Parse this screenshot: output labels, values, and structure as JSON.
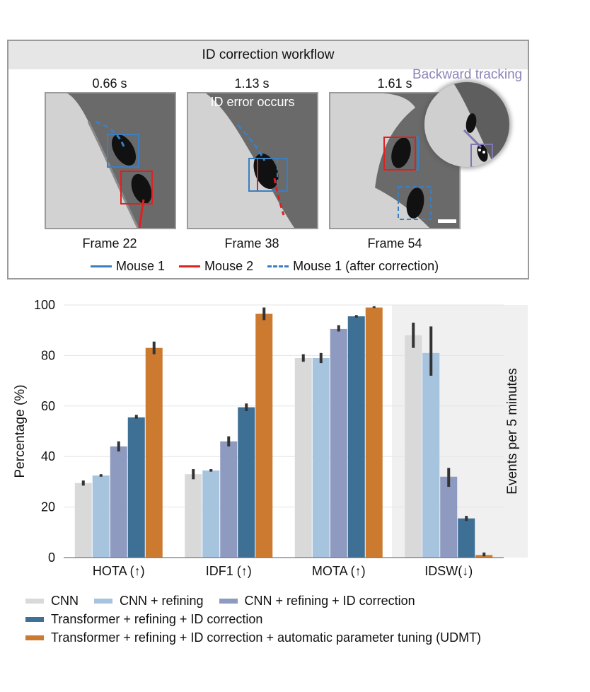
{
  "workflow": {
    "title": "ID correction workflow",
    "backward_label": "Backward tracking",
    "error_label": "ID error occurs",
    "frames": [
      {
        "time": "0.66 s",
        "label": "Frame 22"
      },
      {
        "time": "1.13 s",
        "label": "Frame 38"
      },
      {
        "time": "1.61 s",
        "label": "Frame 54"
      }
    ],
    "legend": [
      {
        "label": "Mouse 1",
        "color": "#3a7fc1",
        "style": "solid"
      },
      {
        "label": "Mouse 2",
        "color": "#e02020",
        "style": "solid"
      },
      {
        "label": "Mouse 1 (after correction)",
        "color": "#3a7fc1",
        "style": "dashed"
      }
    ],
    "backward_color": "#7f78b0"
  },
  "chart_data": {
    "type": "bar",
    "ylabel": "Percentage (%)",
    "y2label": "Events per 5 minutes",
    "ylim": [
      0,
      100
    ],
    "yticks": [
      0,
      20,
      40,
      60,
      80,
      100
    ],
    "grid": true,
    "categories": [
      "HOTA (↑)",
      "IDF1 (↑)",
      "MOTA (↑)",
      "IDSW(↓)"
    ],
    "shaded_category": "IDSW(↓)",
    "series": [
      {
        "name": "CNN",
        "color": "#d9d9d9",
        "values": [
          29.5,
          33,
          79,
          88
        ],
        "err_low": [
          28.5,
          31,
          77.5,
          83
        ],
        "err_high": [
          30.5,
          35,
          80.5,
          93
        ]
      },
      {
        "name": "CNN + refining",
        "color": "#a7c4df",
        "values": [
          32.5,
          34.5,
          79,
          81
        ],
        "err_low": [
          32,
          34,
          77,
          72
        ],
        "err_high": [
          33,
          35,
          81,
          91.5
        ]
      },
      {
        "name": "CNN + refining + ID correction",
        "color": "#8e9abf",
        "values": [
          44,
          46,
          90.5,
          32
        ],
        "err_low": [
          42,
          44,
          89.5,
          28
        ],
        "err_high": [
          46,
          48,
          92,
          35.5
        ]
      },
      {
        "name": "Transformer + refining + ID correction",
        "color": "#3e6f94",
        "values": [
          55.5,
          59.5,
          95.5,
          15.5
        ],
        "err_low": [
          55,
          58,
          95,
          14.5
        ],
        "err_high": [
          56.5,
          61,
          96,
          16.5
        ]
      },
      {
        "name": "Transformer + refining + ID correction + automatic parameter tuning (UDMT)",
        "color": "#cc7a30",
        "values": [
          83,
          96.5,
          99,
          1
        ],
        "err_low": [
          80.5,
          94,
          98.8,
          0.5
        ],
        "err_high": [
          85.5,
          99,
          99.5,
          2
        ]
      }
    ]
  }
}
